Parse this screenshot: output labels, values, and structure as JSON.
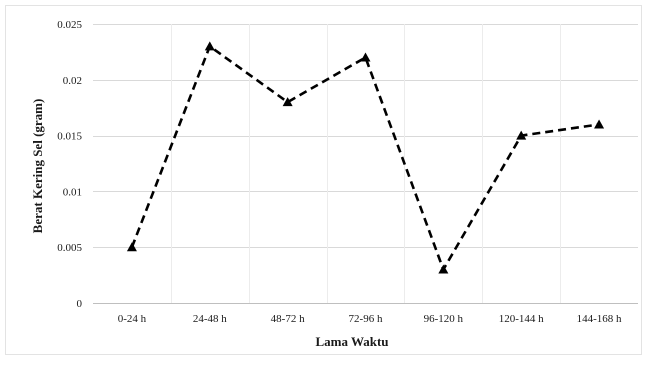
{
  "chart_data": {
    "type": "line",
    "title": "",
    "xlabel": "Lama Waktu",
    "ylabel": "Berat Kering Sel (gram)",
    "categories": [
      "0-24 h",
      "24-48 h",
      "48-72 h",
      "72-96 h",
      "96-120 h",
      "120-144 h",
      "144-168 h"
    ],
    "series": [
      {
        "values": [
          0.005,
          0.023,
          0.018,
          0.022,
          0.003,
          0.015,
          0.016
        ],
        "line_style": "dashed",
        "marker": "triangle",
        "color": "#000000"
      }
    ],
    "ylim": [
      0,
      0.025
    ],
    "yticks": [
      "0",
      "0.005",
      "0.01",
      "0.015",
      "0.02",
      "0.025"
    ],
    "grid": true,
    "grid_color": "#d9d9d9",
    "legend": "none"
  }
}
